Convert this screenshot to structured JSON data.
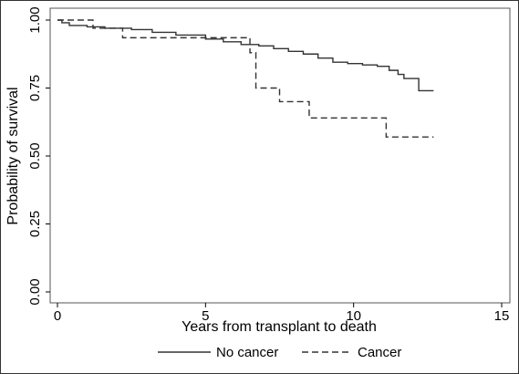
{
  "chart_data": {
    "type": "line",
    "xlabel": "Years from transplant to death",
    "ylabel": "Probability of survival",
    "xlim": [
      0,
      15
    ],
    "ylim": [
      0,
      1
    ],
    "x_ticks": [
      "0",
      "5",
      "10",
      "15"
    ],
    "y_ticks": [
      "0.00",
      "0.25",
      "0.50",
      "0.75",
      "1.00"
    ],
    "grid": false,
    "legend_position": "bottom",
    "series": [
      {
        "name": "No cancer",
        "style": "solid",
        "color": "#333333",
        "points": [
          [
            0,
            1.0
          ],
          [
            0.15,
            0.99
          ],
          [
            0.4,
            0.98
          ],
          [
            1.0,
            0.975
          ],
          [
            1.6,
            0.97
          ],
          [
            2.5,
            0.965
          ],
          [
            3.2,
            0.955
          ],
          [
            4.0,
            0.945
          ],
          [
            5.0,
            0.93
          ],
          [
            5.6,
            0.92
          ],
          [
            6.2,
            0.91
          ],
          [
            6.8,
            0.905
          ],
          [
            7.3,
            0.895
          ],
          [
            7.8,
            0.885
          ],
          [
            8.3,
            0.875
          ],
          [
            8.8,
            0.86
          ],
          [
            9.3,
            0.845
          ],
          [
            9.8,
            0.84
          ],
          [
            10.3,
            0.835
          ],
          [
            10.8,
            0.83
          ],
          [
            11.2,
            0.815
          ],
          [
            11.5,
            0.8
          ],
          [
            11.7,
            0.785
          ],
          [
            12.2,
            0.74
          ],
          [
            12.7,
            0.74
          ]
        ]
      },
      {
        "name": "Cancer",
        "style": "dashed",
        "color": "#333333",
        "points": [
          [
            0,
            1.0
          ],
          [
            1.2,
            0.97
          ],
          [
            2.2,
            0.935
          ],
          [
            6.5,
            0.88
          ],
          [
            6.7,
            0.75
          ],
          [
            7.5,
            0.7
          ],
          [
            8.5,
            0.64
          ],
          [
            11.1,
            0.57
          ],
          [
            12.7,
            0.57
          ]
        ]
      }
    ]
  }
}
